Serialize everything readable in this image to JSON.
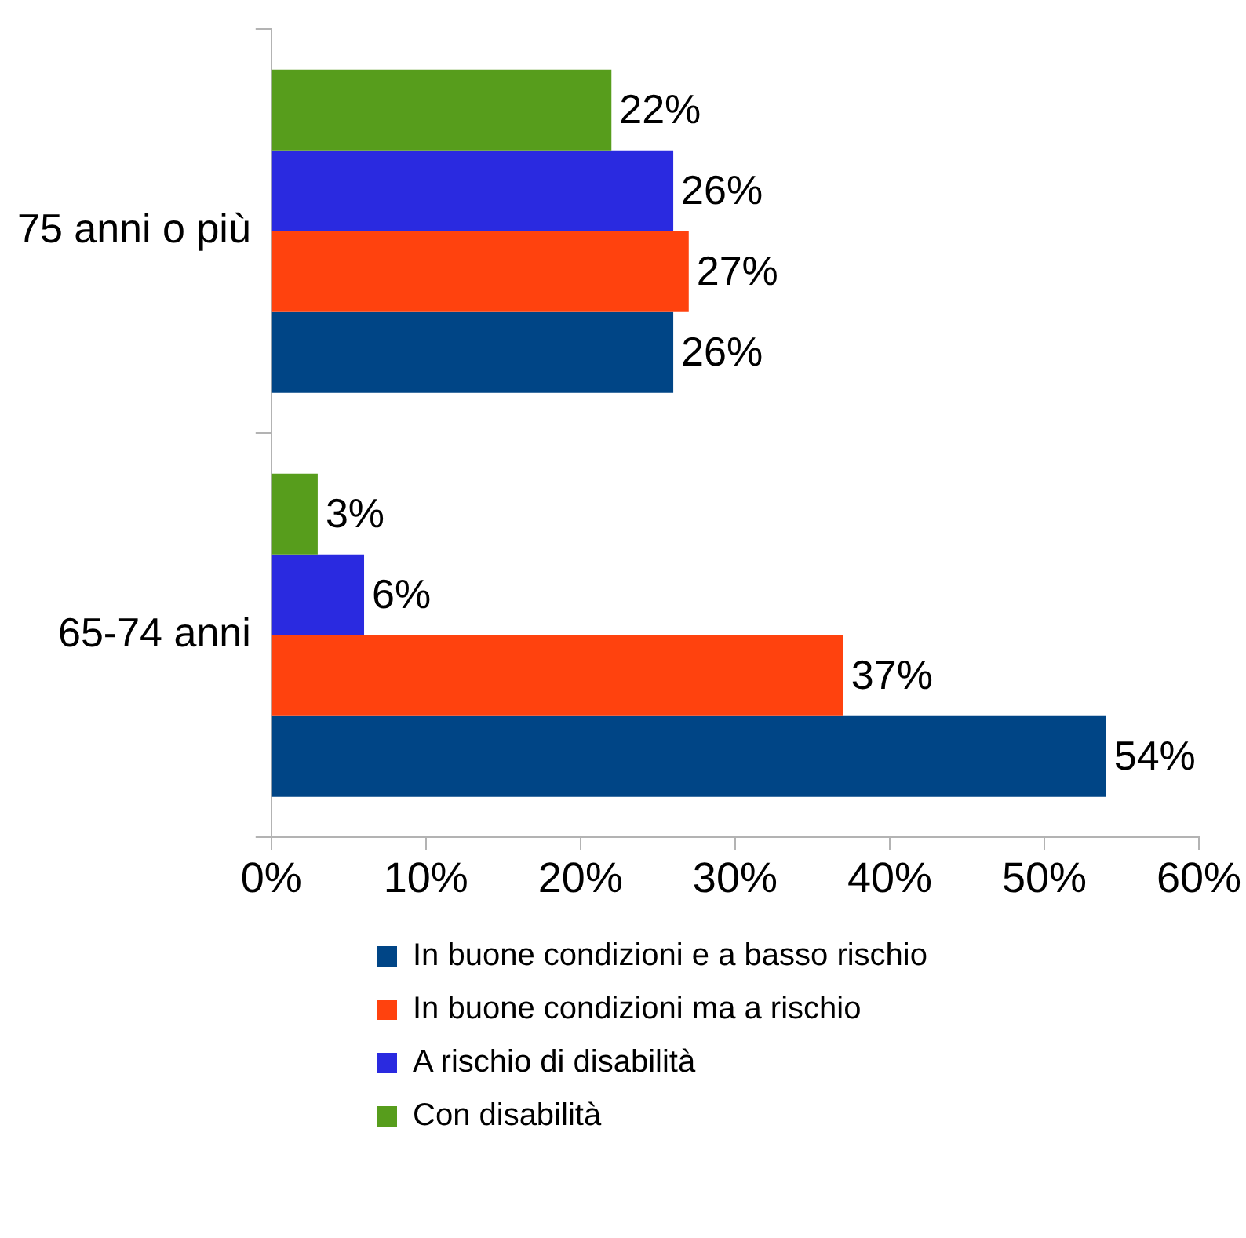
{
  "chart_data": {
    "type": "bar",
    "orientation": "horizontal",
    "categories": [
      "75 anni o più",
      "65-74 anni"
    ],
    "series": [
      {
        "name": "In buone condizioni e a basso rischio",
        "color": "#004586",
        "values": [
          26,
          54
        ],
        "value_labels": [
          "26%",
          "54%"
        ]
      },
      {
        "name": "In buone condizioni ma a rischio",
        "color": "#ff420e",
        "values": [
          27,
          37
        ],
        "value_labels": [
          "27%",
          "37%"
        ]
      },
      {
        "name": "A rischio di disabilità",
        "color": "#2a2ae0",
        "values": [
          26,
          6
        ],
        "value_labels": [
          "26%",
          "6%"
        ]
      },
      {
        "name": "Con disabilità",
        "color": "#579d1c",
        "values": [
          22,
          3
        ],
        "value_labels": [
          "22%",
          "3%"
        ]
      }
    ],
    "xlim": [
      0,
      60
    ],
    "xticks": [
      {
        "value": 0,
        "label": "0%"
      },
      {
        "value": 10,
        "label": "10%"
      },
      {
        "value": 20,
        "label": "20%"
      },
      {
        "value": 30,
        "label": "30%"
      },
      {
        "value": 40,
        "label": "40%"
      },
      {
        "value": 50,
        "label": "50%"
      },
      {
        "value": 60,
        "label": "60%"
      }
    ],
    "grid": false,
    "legend": "bottom"
  }
}
